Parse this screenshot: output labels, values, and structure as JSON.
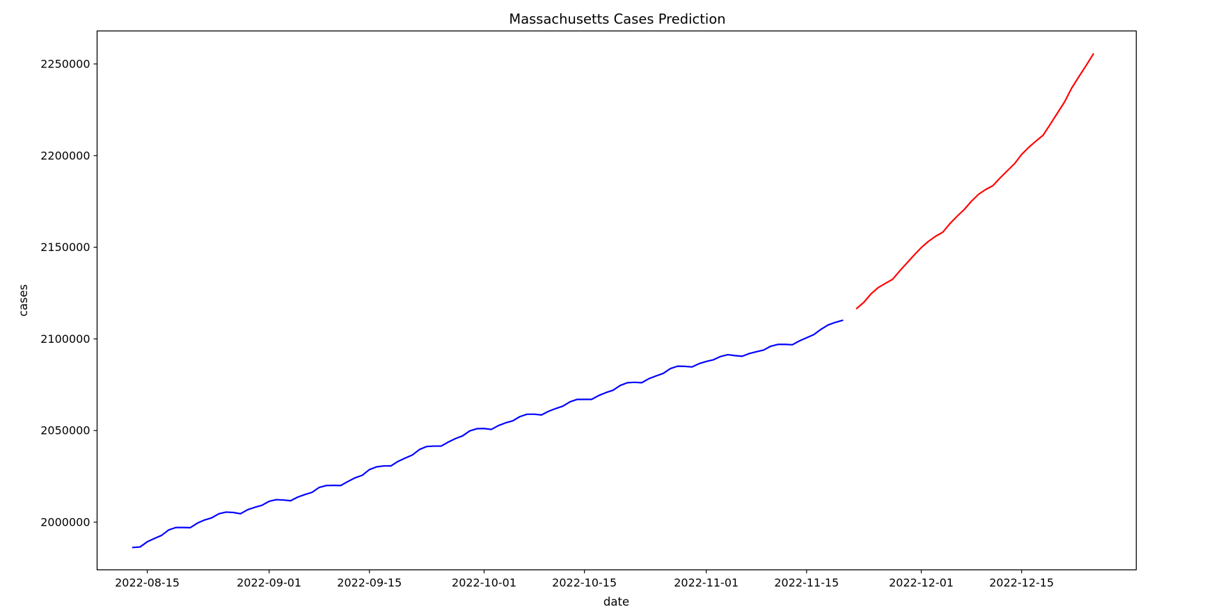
{
  "chart_data": {
    "type": "line",
    "title": "Massachusetts Cases Prediction",
    "xlabel": "date",
    "ylabel": "cases",
    "x_axis": {
      "kind": "date",
      "range": [
        "2022-08-08",
        "2022-12-31"
      ],
      "ticks": [
        "2022-08-15",
        "2022-09-01",
        "2022-09-15",
        "2022-10-01",
        "2022-10-15",
        "2022-11-01",
        "2022-11-15",
        "2022-12-01",
        "2022-12-15"
      ]
    },
    "y_axis": {
      "range": [
        1974000,
        2268000
      ],
      "ticks": [
        2000000,
        2050000,
        2100000,
        2150000,
        2200000,
        2250000
      ]
    },
    "grid": false,
    "legend": "none",
    "series": [
      {
        "color": "#0000ff",
        "x": [
          "2022-08-13",
          "2022-08-14",
          "2022-08-15",
          "2022-08-16",
          "2022-08-17",
          "2022-08-18",
          "2022-08-19",
          "2022-08-20",
          "2022-08-21",
          "2022-08-22",
          "2022-08-23",
          "2022-08-24",
          "2022-08-25",
          "2022-08-26",
          "2022-08-27",
          "2022-08-28",
          "2022-08-29",
          "2022-08-30",
          "2022-08-31",
          "2022-09-01",
          "2022-09-02",
          "2022-09-03",
          "2022-09-04",
          "2022-09-05",
          "2022-09-06",
          "2022-09-07",
          "2022-09-08",
          "2022-09-09",
          "2022-09-10",
          "2022-09-11",
          "2022-09-12",
          "2022-09-13",
          "2022-09-14",
          "2022-09-15",
          "2022-09-16",
          "2022-09-17",
          "2022-09-18",
          "2022-09-19",
          "2022-09-20",
          "2022-09-21",
          "2022-09-22",
          "2022-09-23",
          "2022-09-24",
          "2022-09-25",
          "2022-09-26",
          "2022-09-27",
          "2022-09-28",
          "2022-09-29",
          "2022-09-30",
          "2022-10-01",
          "2022-10-02",
          "2022-10-03",
          "2022-10-04",
          "2022-10-05",
          "2022-10-06",
          "2022-10-07",
          "2022-10-08",
          "2022-10-09",
          "2022-10-10",
          "2022-10-11",
          "2022-10-12",
          "2022-10-13",
          "2022-10-14",
          "2022-10-15",
          "2022-10-16",
          "2022-10-17",
          "2022-10-18",
          "2022-10-19",
          "2022-10-20",
          "2022-10-21",
          "2022-10-22",
          "2022-10-23",
          "2022-10-24",
          "2022-10-25",
          "2022-10-26",
          "2022-10-27",
          "2022-10-28",
          "2022-10-29",
          "2022-10-30",
          "2022-10-31",
          "2022-11-01",
          "2022-11-02",
          "2022-11-03",
          "2022-11-04",
          "2022-11-05",
          "2022-11-06",
          "2022-11-07",
          "2022-11-08",
          "2022-11-09",
          "2022-11-10",
          "2022-11-11",
          "2022-11-12",
          "2022-11-13",
          "2022-11-14",
          "2022-11-15",
          "2022-11-16",
          "2022-11-17",
          "2022-11-18",
          "2022-11-19",
          "2022-11-20"
        ],
        "y": [
          1986200,
          1986500,
          1989300,
          1991100,
          1992800,
          1995800,
          1997100,
          1997100,
          1997000,
          1999500,
          2001200,
          2002400,
          2004600,
          2005500,
          2005300,
          2004600,
          2006800,
          2008100,
          2009200,
          2011400,
          2012300,
          2012100,
          2011700,
          2013700,
          2015100,
          2016300,
          2019000,
          2020000,
          2020100,
          2020000,
          2022200,
          2024200,
          2025600,
          2028700,
          2030200,
          2030700,
          2030700,
          2033200,
          2035000,
          2036700,
          2039700,
          2041300,
          2041500,
          2041500,
          2043700,
          2045600,
          2047100,
          2049800,
          2051000,
          2051100,
          2050600,
          2052700,
          2054200,
          2055300,
          2057600,
          2058900,
          2058900,
          2058500,
          2060500,
          2062000,
          2063300,
          2065700,
          2067000,
          2067000,
          2067000,
          2069100,
          2070700,
          2072000,
          2074600,
          2076100,
          2076300,
          2076100,
          2078300,
          2079800,
          2081200,
          2083800,
          2085100,
          2085000,
          2084700,
          2086500,
          2087700,
          2088600,
          2090400,
          2091400,
          2090900,
          2090500,
          2092000,
          2093000,
          2093900,
          2096000,
          2097000,
          2097000,
          2096800,
          2098900,
          2100600,
          2102300,
          2105200,
          2107600,
          2109000,
          2110100
        ]
      },
      {
        "color": "#ff0000",
        "x": [
          "2022-11-22",
          "2022-11-23",
          "2022-11-24",
          "2022-11-25",
          "2022-11-26",
          "2022-11-27",
          "2022-11-28",
          "2022-11-29",
          "2022-11-30",
          "2022-12-01",
          "2022-12-02",
          "2022-12-03",
          "2022-12-04",
          "2022-12-05",
          "2022-12-06",
          "2022-12-07",
          "2022-12-08",
          "2022-12-09",
          "2022-12-10",
          "2022-12-11",
          "2022-12-12",
          "2022-12-13",
          "2022-12-14",
          "2022-12-15",
          "2022-12-16",
          "2022-12-17",
          "2022-12-18",
          "2022-12-19",
          "2022-12-20",
          "2022-12-21",
          "2022-12-22",
          "2022-12-23",
          "2022-12-24",
          "2022-12-25"
        ],
        "y": [
          2116600,
          2120000,
          2124600,
          2128000,
          2130300,
          2132500,
          2137100,
          2141400,
          2145700,
          2149800,
          2153200,
          2156000,
          2158200,
          2162900,
          2166900,
          2170600,
          2175100,
          2178900,
          2181500,
          2183600,
          2187800,
          2191700,
          2195500,
          2200600,
          2204500,
          2207900,
          2211100,
          2217100,
          2223200,
          2229300,
          2236900,
          2243100,
          2249100,
          2255400
        ]
      }
    ]
  }
}
